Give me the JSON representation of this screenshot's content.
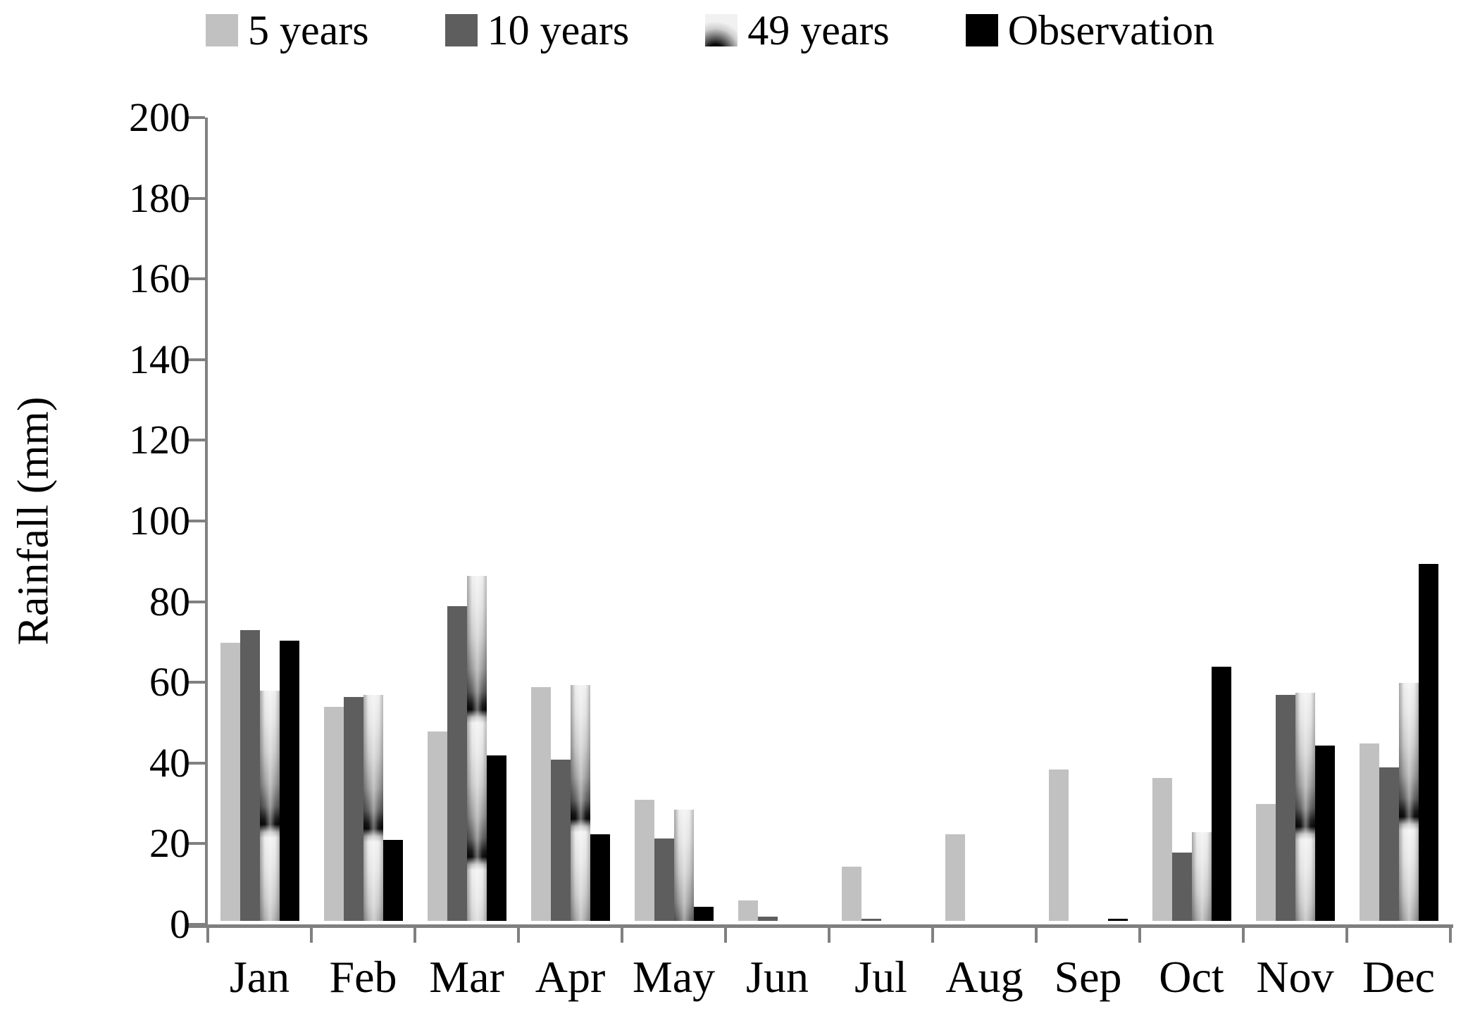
{
  "chart_data": {
    "type": "bar",
    "title": "",
    "xlabel": "",
    "ylabel": "Rainfall (mm)",
    "ylim": [
      0,
      200
    ],
    "ytick_step": 20,
    "grid": false,
    "legend_position": "top",
    "axis_color": "#808080",
    "text_color": "#000000",
    "categories": [
      "Jan",
      "Feb",
      "Mar",
      "Apr",
      "May",
      "Jun",
      "Jul",
      "Aug",
      "Sep",
      "Oct",
      "Nov",
      "Dec"
    ],
    "series": [
      {
        "name": "5 years",
        "fill": "light-gray",
        "color": "#c1c1c1",
        "values": [
          69,
          53,
          47,
          58,
          30,
          5,
          13.5,
          21.5,
          37.5,
          35.5,
          29,
          44
        ]
      },
      {
        "name": "10 years",
        "fill": "dark-gray",
        "color": "#5e5e5e",
        "values": [
          72,
          55.5,
          78,
          40,
          20.5,
          1,
          0.5,
          0,
          0,
          17,
          56,
          38
        ]
      },
      {
        "name": "49 years",
        "fill": "shaded-texture",
        "color": "#b5b5b5",
        "values": [
          57,
          56,
          85.5,
          58.5,
          27.5,
          0,
          0,
          0,
          0,
          22,
          56.5,
          59
        ]
      },
      {
        "name": "Observation",
        "fill": "black",
        "color": "#000000",
        "values": [
          69.5,
          20,
          41,
          21.5,
          3.5,
          0,
          0,
          0,
          0.5,
          63,
          43.5,
          88.5
        ]
      }
    ]
  }
}
